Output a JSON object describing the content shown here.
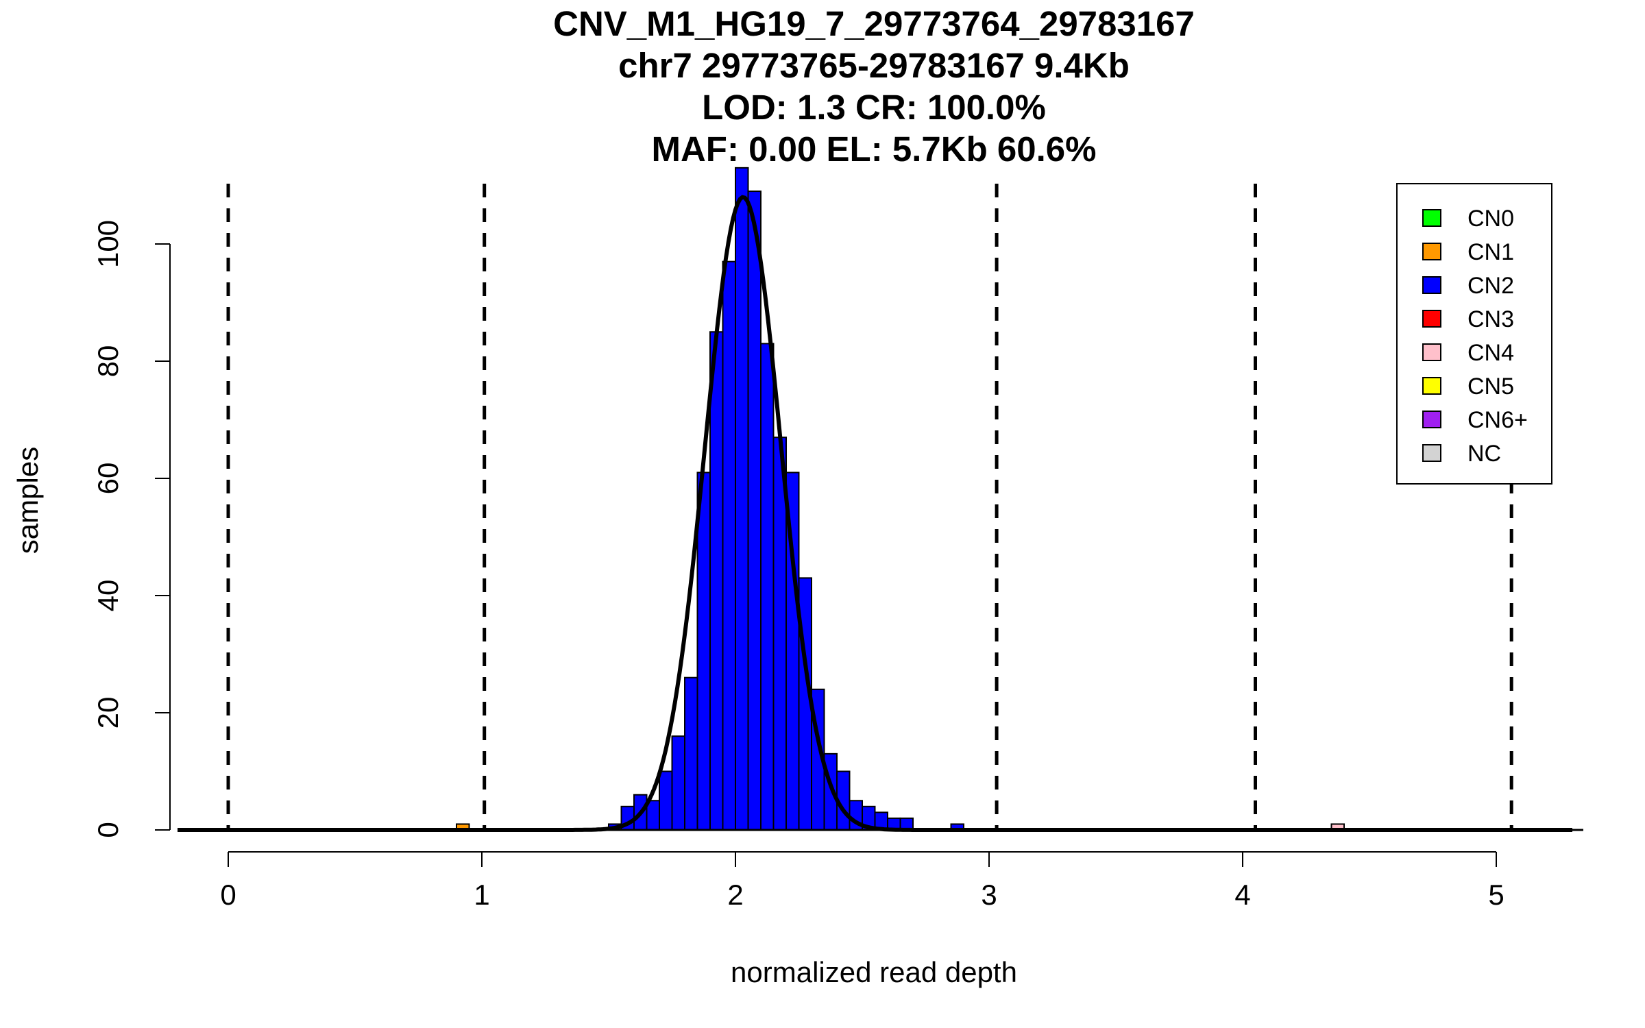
{
  "chart_data": {
    "type": "bar",
    "title_lines": [
      "CNV_M1_HG19_7_29773764_29783167",
      "chr7 29773765-29783167 9.4Kb",
      "LOD: 1.3 CR: 100.0%",
      "MAF: 0.00 EL: 5.7Kb 60.6%"
    ],
    "xlabel": "normalized read depth",
    "ylabel": "samples",
    "xlim": [
      -0.2,
      5.3
    ],
    "ylim": [
      0,
      113
    ],
    "x_ticks": [
      "0",
      "1",
      "2",
      "3",
      "4",
      "5"
    ],
    "y_ticks": [
      "0",
      "20",
      "40",
      "60",
      "80",
      "100"
    ],
    "cn_boundaries": [
      0,
      1.01,
      3.03,
      4.05,
      5.06
    ],
    "bin_width": 0.05,
    "series": [
      {
        "name": "CN2",
        "color": "#0000ff",
        "bins": [
          [
            1.5,
            1
          ],
          [
            1.55,
            4
          ],
          [
            1.6,
            6
          ],
          [
            1.65,
            5
          ],
          [
            1.7,
            10
          ],
          [
            1.75,
            16
          ],
          [
            1.8,
            26
          ],
          [
            1.85,
            61
          ],
          [
            1.9,
            85
          ],
          [
            1.95,
            97
          ],
          [
            2.0,
            113
          ],
          [
            2.05,
            109
          ],
          [
            2.1,
            83
          ],
          [
            2.15,
            67
          ],
          [
            2.2,
            61
          ],
          [
            2.25,
            43
          ],
          [
            2.3,
            24
          ],
          [
            2.35,
            13
          ],
          [
            2.4,
            10
          ],
          [
            2.45,
            5
          ],
          [
            2.5,
            4
          ],
          [
            2.55,
            3
          ],
          [
            2.6,
            2
          ],
          [
            2.65,
            2
          ],
          [
            2.85,
            1
          ]
        ]
      },
      {
        "name": "CN1",
        "color": "#ff9900",
        "bins": [
          [
            0.9,
            1
          ]
        ]
      },
      {
        "name": "CN4",
        "color": "#ffc0cb",
        "bins": [
          [
            4.35,
            1
          ]
        ]
      }
    ],
    "fit_curve": {
      "mean": 2.03,
      "sd": 0.15,
      "peak": 108
    },
    "legend": {
      "position": "top-right",
      "items": [
        {
          "label": "CN0",
          "color": "#00ff00"
        },
        {
          "label": "CN1",
          "color": "#ff9900"
        },
        {
          "label": "CN2",
          "color": "#0000ff"
        },
        {
          "label": "CN3",
          "color": "#ff0000"
        },
        {
          "label": "CN4",
          "color": "#ffc0cb"
        },
        {
          "label": "CN5",
          "color": "#ffff00"
        },
        {
          "label": "CN6+",
          "color": "#a020f0"
        },
        {
          "label": "NC",
          "color": "#d3d3d3"
        }
      ]
    }
  }
}
